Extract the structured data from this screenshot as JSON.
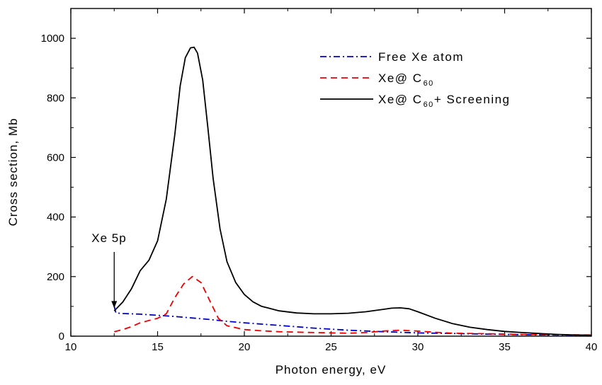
{
  "chart_data": {
    "type": "line",
    "xlabel": "Photon energy, eV",
    "ylabel": "Cross section, Mb",
    "xlim": [
      10,
      40
    ],
    "ylim": [
      0,
      1100
    ],
    "x_ticks": [
      10,
      15,
      20,
      25,
      30,
      35,
      40
    ],
    "y_ticks": [
      0,
      200,
      400,
      600,
      800,
      1000
    ],
    "grid": false,
    "legend_position": "top-right",
    "annotation": {
      "text": "Xe 5p",
      "arrow_to": [
        12.5,
        80
      ]
    },
    "series": [
      {
        "name": "Free Xe atom",
        "legend_parts": [
          "Free Xe atom"
        ],
        "color": "#0000cc",
        "dash": "dash-dot",
        "x": [
          12.5,
          12.6,
          13,
          14,
          15,
          16,
          17,
          18,
          19,
          20,
          22,
          24,
          26,
          28,
          30,
          32,
          34,
          36,
          38,
          40
        ],
        "y": [
          100,
          78,
          76,
          74,
          70,
          66,
          61,
          56,
          50,
          45,
          36,
          27,
          20,
          15,
          11,
          9,
          7,
          5,
          4,
          3
        ]
      },
      {
        "name": "Xe@C60",
        "legend_parts": [
          "Xe@ C",
          "60"
        ],
        "color": "#ee0000",
        "dash": "dashed",
        "x": [
          12.5,
          13,
          13.5,
          14,
          15,
          15.5,
          16,
          16.5,
          17,
          17.5,
          18,
          18.5,
          19,
          20,
          21,
          22,
          24,
          26,
          27,
          28,
          29,
          30,
          31,
          32,
          34,
          36,
          38,
          40
        ],
        "y": [
          15,
          22,
          32,
          45,
          60,
          75,
          130,
          175,
          200,
          180,
          120,
          60,
          35,
          22,
          18,
          15,
          12,
          10,
          12,
          17,
          20,
          17,
          13,
          10,
          8,
          6,
          5,
          4
        ]
      },
      {
        "name": "Xe@C60+ Screening",
        "legend_parts": [
          "Xe@ C",
          "60",
          "+ Screening"
        ],
        "color": "#000000",
        "dash": "solid",
        "x": [
          12.5,
          13,
          13.5,
          14,
          14.5,
          15,
          15.5,
          16,
          16.3,
          16.6,
          16.9,
          17.1,
          17.3,
          17.6,
          17.9,
          18.2,
          18.6,
          19,
          19.5,
          20,
          20.5,
          21,
          22,
          23,
          24,
          25,
          26,
          27,
          28,
          28.5,
          29,
          29.5,
          30,
          31,
          32,
          33,
          34,
          35,
          36,
          37,
          38,
          39,
          40
        ],
        "y": [
          85,
          115,
          160,
          220,
          255,
          320,
          460,
          680,
          840,
          935,
          968,
          970,
          950,
          860,
          700,
          530,
          360,
          250,
          180,
          140,
          115,
          100,
          85,
          78,
          75,
          75,
          77,
          82,
          90,
          94,
          95,
          92,
          82,
          60,
          42,
          30,
          22,
          16,
          12,
          9,
          6,
          4,
          3
        ]
      }
    ]
  }
}
